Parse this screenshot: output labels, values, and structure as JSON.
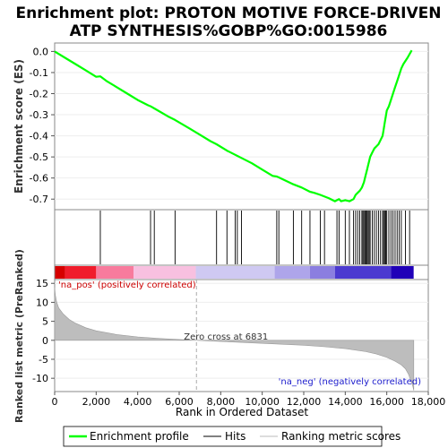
{
  "chart_data": {
    "type": "line",
    "title_line1": "Enrichment plot: PROTON MOTIVE FORCE-DRIVEN",
    "title_line2": "ATP SYNTHESIS%GOBP%GO:0015986",
    "es_panel": {
      "ylabel": "Enrichment score (ES)",
      "ylim": [
        -0.75,
        0.04
      ],
      "yticks": [
        "0.0",
        "-0.1",
        "-0.2",
        "-0.3",
        "-0.4",
        "-0.5",
        "-0.6",
        "-0.7"
      ],
      "ytick_values": [
        0.0,
        -0.1,
        -0.2,
        -0.3,
        -0.4,
        -0.5,
        -0.6,
        -0.7
      ],
      "series_name": "Enrichment profile",
      "color": "#00ff00",
      "x": [
        0,
        500,
        1000,
        1500,
        2000,
        2200,
        2500,
        3000,
        3500,
        4000,
        4500,
        4620,
        4800,
        5500,
        5800,
        6500,
        7000,
        7500,
        7800,
        8300,
        8700,
        8800,
        9000,
        9500,
        10000,
        10500,
        10700,
        10800,
        11500,
        11900,
        12300,
        12500,
        12800,
        13200,
        13500,
        13600,
        13700,
        13800,
        14000,
        14200,
        14400,
        14500,
        14600,
        14700,
        14800,
        14900,
        14950,
        15000,
        15050,
        15100,
        15150,
        15200,
        15300,
        15400,
        15500,
        15600,
        15700,
        15800,
        15850,
        15900,
        15950,
        16000,
        16100,
        16200,
        16300,
        16400,
        16500,
        16600,
        16700,
        16800,
        17000,
        17200
      ],
      "y": [
        0.0,
        -0.03,
        -0.06,
        -0.09,
        -0.12,
        -0.118,
        -0.14,
        -0.17,
        -0.2,
        -0.23,
        -0.255,
        -0.26,
        -0.27,
        -0.31,
        -0.325,
        -0.365,
        -0.395,
        -0.425,
        -0.44,
        -0.47,
        -0.49,
        -0.495,
        -0.505,
        -0.53,
        -0.56,
        -0.59,
        -0.593,
        -0.597,
        -0.63,
        -0.645,
        -0.665,
        -0.67,
        -0.68,
        -0.695,
        -0.71,
        -0.705,
        -0.7,
        -0.71,
        -0.705,
        -0.71,
        -0.7,
        -0.68,
        -0.67,
        -0.66,
        -0.645,
        -0.62,
        -0.6,
        -0.58,
        -0.56,
        -0.54,
        -0.52,
        -0.5,
        -0.48,
        -0.46,
        -0.45,
        -0.44,
        -0.42,
        -0.4,
        -0.37,
        -0.34,
        -0.31,
        -0.28,
        -0.26,
        -0.23,
        -0.2,
        -0.17,
        -0.14,
        -0.11,
        -0.08,
        -0.06,
        -0.03,
        0.005
      ]
    },
    "hits": [
      2200,
      4620,
      4800,
      5800,
      7800,
      8300,
      8700,
      8800,
      9000,
      10700,
      10800,
      11500,
      11900,
      12300,
      12800,
      13000,
      13600,
      13700,
      14000,
      14200,
      14400,
      14500,
      14600,
      14700,
      14800,
      14850,
      14900,
      14950,
      15000,
      15050,
      15100,
      15150,
      15200,
      15300,
      15400,
      15500,
      15600,
      15700,
      15800,
      15850,
      15900,
      15950,
      16000,
      16100,
      16200,
      16300,
      16400,
      16500,
      16600,
      16700,
      16900,
      17100
    ],
    "heatmap": {
      "segments": [
        {
          "to": 500,
          "color": "#d60000"
        },
        {
          "to": 2000,
          "color": "#f01c2c"
        },
        {
          "to": 3800,
          "color": "#f87b9d"
        },
        {
          "to": 6800,
          "color": "#f8c0e0"
        },
        {
          "to": 10600,
          "color": "#cfc9f2"
        },
        {
          "to": 12300,
          "color": "#aea5ea"
        },
        {
          "to": 13500,
          "color": "#8b7ee0"
        },
        {
          "to": 16200,
          "color": "#4c3ad0"
        },
        {
          "to": 17300,
          "color": "#2000b8"
        }
      ]
    },
    "rank_panel": {
      "ylabel": "Ranked list metric (PreRanked)",
      "xlabel": "Rank in Ordered Dataset",
      "ylim": [
        -13.5,
        16
      ],
      "yticks": [
        "15",
        "10",
        "5",
        "0",
        "-5",
        "-10"
      ],
      "ytick_values": [
        15,
        10,
        5,
        0,
        -5,
        -10
      ],
      "xlim": [
        0,
        18000
      ],
      "xticks": [
        "0",
        "2,000",
        "4,000",
        "6,000",
        "8,000",
        "10,000",
        "12,000",
        "14,000",
        "16,000",
        "18,000"
      ],
      "xtick_values": [
        0,
        2000,
        4000,
        6000,
        8000,
        10000,
        12000,
        14000,
        16000,
        18000
      ],
      "metric_x": [
        0,
        30,
        100,
        200,
        400,
        700,
        1000,
        1500,
        2000,
        3000,
        4000,
        5000,
        6000,
        6831,
        8000,
        10000,
        12000,
        13000,
        14000,
        15000,
        15500,
        16000,
        16400,
        16700,
        16900,
        17050,
        17150,
        17250,
        17300
      ],
      "metric_y": [
        14,
        12,
        10,
        8.5,
        7,
        5.5,
        4.5,
        3.3,
        2.5,
        1.5,
        0.9,
        0.5,
        0.2,
        0.0,
        -0.3,
        -0.8,
        -1.3,
        -1.7,
        -2.2,
        -3.0,
        -3.6,
        -4.5,
        -5.5,
        -6.5,
        -7.5,
        -9,
        -10.5,
        -12,
        -13.2
      ],
      "zero_cross_rank": 6831,
      "zero_cross_label": "Zero cross at 6831",
      "pos_label": "'na_pos' (positively correlated)",
      "neg_label": "'na_neg' (negatively correlated)"
    },
    "legend": [
      "Enrichment profile",
      "Hits",
      "Ranking metric scores"
    ],
    "total_ranks": 17300
  }
}
